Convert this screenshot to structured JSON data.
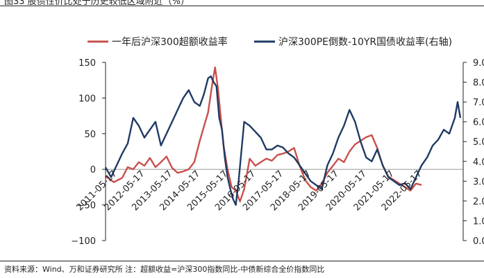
{
  "figure": {
    "title": "图33 股债性价比处于历史较低区域附近（%）",
    "source": "资料来源：Wind、万和证券研究所    注：超额收益=沪深300指数同比-中债新综合全价指数同比"
  },
  "chart_data": {
    "type": "line",
    "title": "图33 股债性价比处于历史较低区域附近（%）",
    "xlabel": "",
    "ylabel": "",
    "y_left_lim": [
      -100,
      150
    ],
    "y_left_ticks": [
      "−100",
      "−50",
      "0",
      "50",
      "100",
      "150"
    ],
    "y_right_lim": [
      0.0,
      9.0
    ],
    "y_right_ticks": [
      "0.0",
      "1.0",
      "2.0",
      "3.0",
      "4.0",
      "5.0",
      "6.0",
      "7.0",
      "8.0",
      "9.0"
    ],
    "x_tick_labels": [
      "2011-05-17",
      "2012-05-17",
      "2013-05-17",
      "2014-05-17",
      "2015-05-17",
      "2016-05-17",
      "2017-05-17",
      "2018-05-17",
      "2019-05-17",
      "2020-05-17",
      "2021-05-17",
      "2022-05-17"
    ],
    "x_range": [
      2011.0,
      2023.9
    ],
    "legend_position": "top",
    "series": [
      {
        "name": "一年后沪深300超额收益率",
        "axis": "left",
        "color": "#C8504B",
        "x": [
          2011.0,
          2011.3,
          2011.6,
          2011.8,
          2012.0,
          2012.2,
          2012.4,
          2012.6,
          2012.8,
          2013.0,
          2013.2,
          2013.4,
          2013.6,
          2013.8,
          2014.0,
          2014.2,
          2014.4,
          2014.55,
          2014.7,
          2014.85,
          2014.95,
          2015.05,
          2015.15,
          2015.25,
          2015.4,
          2015.55,
          2015.7,
          2015.85,
          2016.0,
          2016.2,
          2016.4,
          2016.6,
          2016.8,
          2017.0,
          2017.2,
          2017.4,
          2017.6,
          2017.8,
          2018.0,
          2018.2,
          2018.4,
          2018.6,
          2018.8,
          2019.0,
          2019.2,
          2019.4,
          2019.6,
          2019.8,
          2020.0,
          2020.2,
          2020.4,
          2020.6,
          2020.8,
          2021.0,
          2021.2,
          2021.4,
          2021.6,
          2021.8,
          2022.0,
          2022.2,
          2022.4
        ],
        "values": [
          -10,
          -18,
          -12,
          3,
          0,
          10,
          5,
          16,
          3,
          10,
          18,
          2,
          -5,
          -3,
          0,
          10,
          40,
          60,
          80,
          120,
          143,
          115,
          75,
          35,
          0,
          -25,
          -30,
          -45,
          -28,
          15,
          5,
          10,
          15,
          12,
          20,
          22,
          25,
          30,
          5,
          -15,
          -25,
          -30,
          -20,
          -5,
          5,
          15,
          10,
          25,
          35,
          40,
          45,
          48,
          30,
          5,
          -10,
          -15,
          -20,
          -25,
          -30,
          -20,
          -22
        ]
      },
      {
        "name": "沪深300PE倒数-10YR国债收益率(右轴)",
        "axis": "right",
        "color": "#1F3A63",
        "x": [
          2011.0,
          2011.2,
          2011.4,
          2011.6,
          2011.8,
          2012.0,
          2012.2,
          2012.4,
          2012.6,
          2012.8,
          2013.0,
          2013.2,
          2013.4,
          2013.6,
          2013.8,
          2014.0,
          2014.2,
          2014.4,
          2014.55,
          2014.7,
          2014.8,
          2014.9,
          2015.0,
          2015.1,
          2015.2,
          2015.3,
          2015.4,
          2015.5,
          2015.6,
          2015.7,
          2015.8,
          2015.9,
          2016.0,
          2016.2,
          2016.4,
          2016.6,
          2016.8,
          2017.0,
          2017.2,
          2017.4,
          2017.6,
          2017.8,
          2018.0,
          2018.2,
          2018.4,
          2018.6,
          2018.8,
          2019.0,
          2019.2,
          2019.4,
          2019.6,
          2019.8,
          2020.0,
          2020.2,
          2020.4,
          2020.6,
          2020.8,
          2021.0,
          2021.2,
          2021.4,
          2021.6,
          2021.8,
          2022.0,
          2022.2,
          2022.4,
          2022.6,
          2022.8,
          2023.0,
          2023.2,
          2023.4,
          2023.6,
          2023.7,
          2023.8
        ],
        "values": [
          3.7,
          3.2,
          3.8,
          4.4,
          4.9,
          6.2,
          5.8,
          5.2,
          5.6,
          6.0,
          4.8,
          5.4,
          6.0,
          6.6,
          7.2,
          7.6,
          7.0,
          6.8,
          7.4,
          8.2,
          8.3,
          8.0,
          7.8,
          6.2,
          5.6,
          4.2,
          3.2,
          2.6,
          2.1,
          1.8,
          3.0,
          4.5,
          6.0,
          5.8,
          5.5,
          5.2,
          4.6,
          4.6,
          4.8,
          4.7,
          4.4,
          4.2,
          3.8,
          3.4,
          3.0,
          2.8,
          2.6,
          3.8,
          4.4,
          5.2,
          5.8,
          6.6,
          6.0,
          5.0,
          4.2,
          4.0,
          4.6,
          3.8,
          3.2,
          3.0,
          2.8,
          2.9,
          2.6,
          3.2,
          3.8,
          4.2,
          4.8,
          5.1,
          5.6,
          5.4,
          6.2,
          7.0,
          6.2
        ]
      }
    ]
  }
}
